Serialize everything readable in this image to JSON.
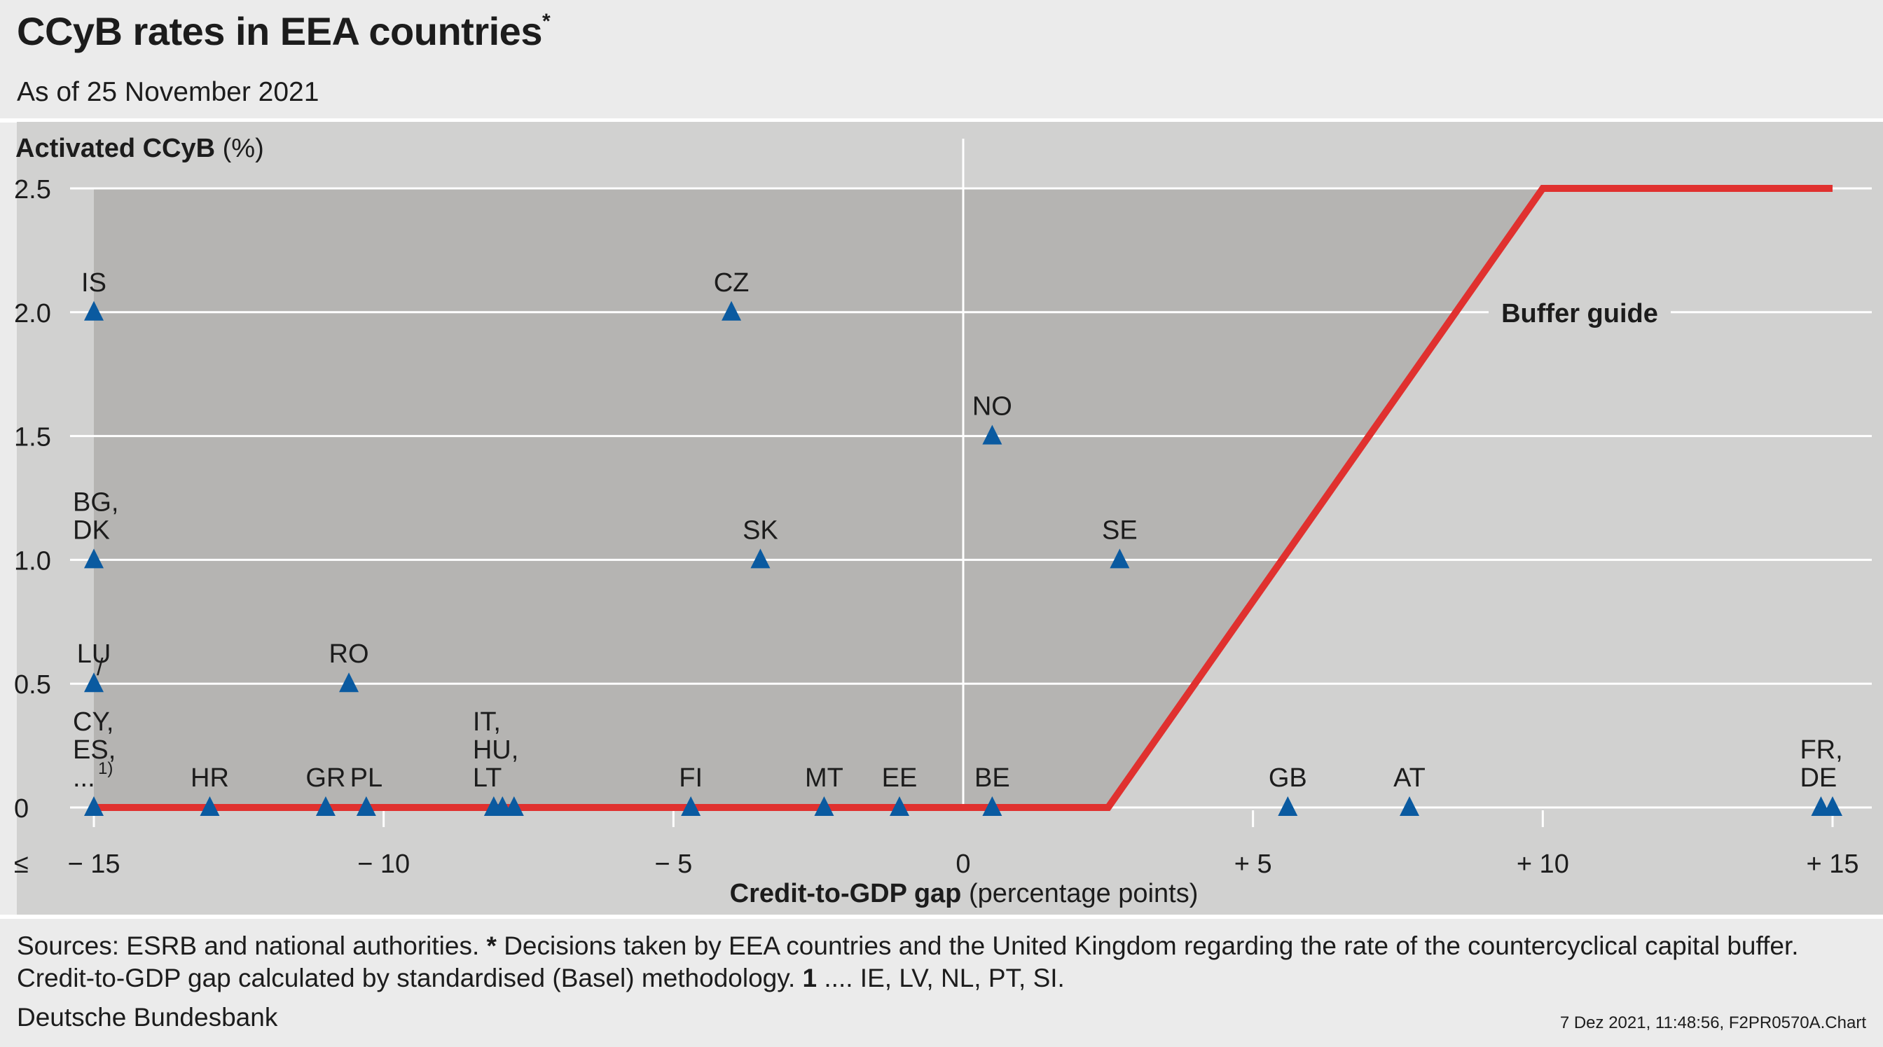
{
  "header": {
    "title": "CCyB rates in EEA countries",
    "title_marker": "*",
    "subtitle": "As of 25 November 2021"
  },
  "colors": {
    "background": "#ebebeb",
    "plot_background": "#d1d1d0",
    "shaded_region": "#b5b4b2",
    "buffer_guide": "#e0312f",
    "marker": "#0a5aa0",
    "gridline": "#ffffff"
  },
  "chart_data": {
    "type": "scatter",
    "ylabel_bold": "Activated CCyB",
    "ylabel_unit": "(%)",
    "xlabel_bold": "Credit-to-GDP gap",
    "xlabel_unit": "(percentage points)",
    "xlim": [
      -15,
      15
    ],
    "ylim": [
      0,
      2.5
    ],
    "x_ticks": [
      {
        "value": -15,
        "label": "− 15"
      },
      {
        "value": -10,
        "label": "− 10"
      },
      {
        "value": -5,
        "label": "− 5"
      },
      {
        "value": 0,
        "label": "0"
      },
      {
        "value": 5,
        "label": "+ 5"
      },
      {
        "value": 10,
        "label": "+ 10"
      },
      {
        "value": 15,
        "label": "+ 15"
      }
    ],
    "x_lower_bound_marker": "≤",
    "y_ticks": [
      {
        "value": 0,
        "label": "0"
      },
      {
        "value": 0.5,
        "label": "0.5"
      },
      {
        "value": 1.0,
        "label": "1.0"
      },
      {
        "value": 1.5,
        "label": "1.5"
      },
      {
        "value": 2.0,
        "label": "2.0"
      },
      {
        "value": 2.5,
        "label": "2.5"
      }
    ],
    "grid": true,
    "shaded_region_x": [
      -15,
      2.5
    ],
    "buffer_guide": {
      "label": "Buffer guide",
      "points": [
        [
          -15,
          0
        ],
        [
          2.5,
          0
        ],
        [
          10,
          2.5
        ],
        [
          15,
          2.5
        ]
      ]
    },
    "points": [
      {
        "x": -15,
        "y": 2.0,
        "label": [
          "IS"
        ]
      },
      {
        "x": -15,
        "y": 1.0,
        "label": [
          "BG,",
          "DK"
        ]
      },
      {
        "x": -15,
        "y": 0.5,
        "label": [
          "LU"
        ],
        "slash": "/"
      },
      {
        "x": -15,
        "y": 0,
        "label": [
          "CY,",
          "ES,",
          "..."
        ],
        "superscript": "1)"
      },
      {
        "x": -13,
        "y": 0,
        "label": [
          "HR"
        ]
      },
      {
        "x": -11,
        "y": 0,
        "label": [
          "GR"
        ]
      },
      {
        "x": -10.3,
        "y": 0,
        "label": [
          "PL"
        ]
      },
      {
        "x": -10.6,
        "y": 0.5,
        "label": [
          "RO"
        ]
      },
      {
        "x": -8.1,
        "y": 0,
        "label": [
          "IT,",
          "HU,",
          "LT"
        ]
      },
      {
        "x": -7.95,
        "y": 0,
        "label": []
      },
      {
        "x": -7.75,
        "y": 0,
        "label": []
      },
      {
        "x": -4.7,
        "y": 0,
        "label": [
          "FI"
        ]
      },
      {
        "x": -4.0,
        "y": 2.0,
        "label": [
          "CZ"
        ]
      },
      {
        "x": -3.5,
        "y": 1.0,
        "label": [
          "SK"
        ]
      },
      {
        "x": -2.4,
        "y": 0,
        "label": [
          "MT"
        ]
      },
      {
        "x": -1.1,
        "y": 0,
        "label": [
          "EE"
        ]
      },
      {
        "x": 0.5,
        "y": 0,
        "label": [
          "BE"
        ]
      },
      {
        "x": 0.5,
        "y": 1.5,
        "label": [
          "NO"
        ]
      },
      {
        "x": 2.7,
        "y": 1.0,
        "label": [
          "SE"
        ]
      },
      {
        "x": 5.6,
        "y": 0,
        "label": [
          "GB"
        ]
      },
      {
        "x": 7.7,
        "y": 0,
        "label": [
          "AT"
        ]
      },
      {
        "x": 14.8,
        "y": 0,
        "label": [
          "FR,",
          "DE"
        ]
      },
      {
        "x": 15,
        "y": 0,
        "label": []
      }
    ]
  },
  "footer": {
    "sources_prefix": "Sources: ESRB and national authorities.",
    "note_marker": "*",
    "note_text": "Decisions taken by EEA countries and the United Kingdom regarding the rate of the countercyclical capital buffer.",
    "line2_prefix": "Credit-to-GDP gap calculated by standardised (Basel) methodology.",
    "note1_marker": "1",
    "note1_text": ".... IE, LV, NL, PT, SI.",
    "source": "Deutsche Bundesbank",
    "stamp": "7 Dez 2021, 11:48:56, F2PR0570A.Chart"
  }
}
